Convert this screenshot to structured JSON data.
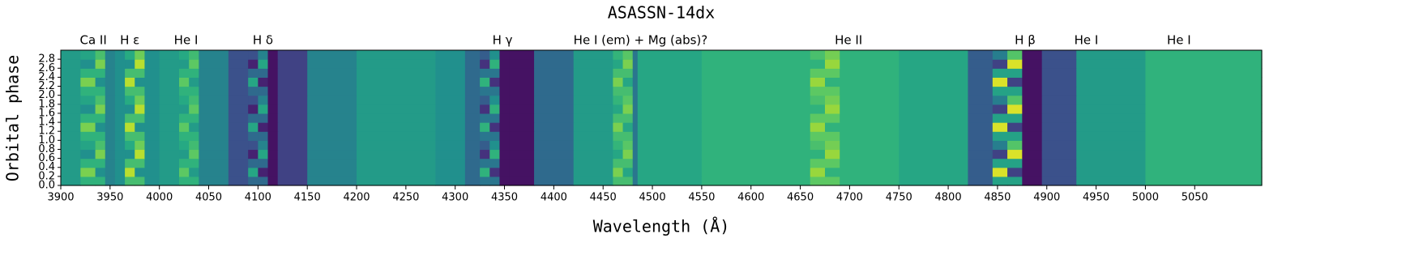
{
  "chart_data": {
    "type": "heatmap",
    "title": "ASASSN-14dx",
    "xlabel": "Wavelength (Å)",
    "ylabel": "Orbital phase",
    "colormap": "viridis",
    "x": [
      3900,
      3920,
      3935,
      3945,
      3955,
      3965,
      3975,
      3985,
      4000,
      4020,
      4030,
      4040,
      4070,
      4090,
      4100,
      4110,
      4120,
      4150,
      4200,
      4280,
      4310,
      4325,
      4335,
      4345,
      4355,
      4380,
      4420,
      4460,
      4470,
      4480,
      4485,
      4550,
      4660,
      4675,
      4690,
      4750,
      4820,
      4845,
      4860,
      4875,
      4895,
      4930,
      5000,
      5118
    ],
    "y": [
      0,
      0.2,
      0.4,
      0.6,
      0.8,
      1,
      1.2,
      1.4,
      1.6,
      1.8,
      2,
      2.2,
      2.4,
      2.6,
      2.8,
      3
    ],
    "xlim": [
      3900,
      5118
    ],
    "ylim": [
      0,
      3
    ],
    "xticks": [
      3900,
      3950,
      4000,
      4050,
      4100,
      4150,
      4200,
      4250,
      4300,
      4350,
      4400,
      4450,
      4500,
      4550,
      4600,
      4650,
      4700,
      4750,
      4800,
      4850,
      4900,
      4950,
      5000,
      5050
    ],
    "yticks": [
      {
        "value": 0,
        "label": "0.0"
      },
      0.2,
      0.4,
      0.6,
      0.8,
      {
        "value": 1,
        "label": "1.0"
      },
      1.2,
      1.4,
      1.6,
      1.8,
      {
        "value": 2,
        "label": "2.0"
      },
      2.2,
      2.4,
      2.6,
      2.8
    ],
    "line_labels": [
      {
        "label": "Ca II",
        "x": 3933
      },
      {
        "label": "H ε",
        "x": 3970
      },
      {
        "label": "He I",
        "x": 4027
      },
      {
        "label": "H δ",
        "x": 4105
      },
      {
        "label": "H γ",
        "x": 4348
      },
      {
        "label": "He I (em) + Mg (abs)?",
        "x": 4488
      },
      {
        "label": "He II",
        "x": 4699
      },
      {
        "label": "H β",
        "x": 4878
      },
      {
        "label": "He I",
        "x": 4940
      },
      {
        "label": "He I",
        "x": 5034
      }
    ],
    "values": [
      [
        0.55,
        0.65,
        0.65,
        0.45,
        0.5,
        0.7,
        0.7,
        0.5,
        0.55,
        0.65,
        0.65,
        0.45,
        0.25,
        0.35,
        0.35,
        0.05,
        0.2,
        0.45,
        0.55,
        0.5,
        0.35,
        0.4,
        0.4,
        0.05,
        0.05,
        0.35,
        0.55,
        0.7,
        0.7,
        0.4,
        0.6,
        0.65,
        0.75,
        0.75,
        0.65,
        0.6,
        0.3,
        0.58,
        0.58,
        0.05,
        0.25,
        0.55,
        0.65
      ],
      [
        0.55,
        0.8,
        0.5,
        0.45,
        0.5,
        0.9,
        0.5,
        0.5,
        0.55,
        0.75,
        0.55,
        0.45,
        0.25,
        0.6,
        0.1,
        0.05,
        0.2,
        0.45,
        0.55,
        0.5,
        0.35,
        0.65,
        0.15,
        0.05,
        0.05,
        0.35,
        0.55,
        0.8,
        0.6,
        0.4,
        0.6,
        0.65,
        0.85,
        0.65,
        0.65,
        0.6,
        0.3,
        0.95,
        0.2,
        0.05,
        0.25,
        0.55,
        0.65
      ],
      [
        0.55,
        0.65,
        0.65,
        0.45,
        0.5,
        0.7,
        0.7,
        0.5,
        0.55,
        0.65,
        0.65,
        0.45,
        0.25,
        0.35,
        0.35,
        0.05,
        0.2,
        0.45,
        0.55,
        0.5,
        0.35,
        0.4,
        0.4,
        0.05,
        0.05,
        0.35,
        0.55,
        0.7,
        0.7,
        0.4,
        0.6,
        0.65,
        0.75,
        0.75,
        0.65,
        0.6,
        0.3,
        0.58,
        0.58,
        0.05,
        0.25,
        0.55,
        0.65
      ],
      [
        0.55,
        0.5,
        0.8,
        0.45,
        0.5,
        0.5,
        0.9,
        0.5,
        0.55,
        0.55,
        0.75,
        0.45,
        0.25,
        0.1,
        0.6,
        0.05,
        0.2,
        0.45,
        0.55,
        0.5,
        0.35,
        0.15,
        0.65,
        0.05,
        0.05,
        0.35,
        0.55,
        0.6,
        0.8,
        0.4,
        0.6,
        0.65,
        0.65,
        0.85,
        0.65,
        0.6,
        0.3,
        0.2,
        0.95,
        0.05,
        0.25,
        0.55,
        0.65
      ],
      [
        0.55,
        0.59,
        0.71,
        0.45,
        0.5,
        0.62,
        0.78,
        0.5,
        0.55,
        0.61,
        0.69,
        0.45,
        0.25,
        0.25,
        0.45,
        0.05,
        0.2,
        0.45,
        0.55,
        0.5,
        0.35,
        0.3,
        0.5,
        0.05,
        0.05,
        0.35,
        0.55,
        0.66,
        0.74,
        0.4,
        0.6,
        0.65,
        0.71,
        0.79,
        0.65,
        0.6,
        0.3,
        0.43,
        0.73,
        0.05,
        0.25,
        0.55,
        0.65
      ],
      [
        0.55,
        0.65,
        0.65,
        0.45,
        0.5,
        0.7,
        0.7,
        0.5,
        0.55,
        0.65,
        0.65,
        0.45,
        0.25,
        0.35,
        0.35,
        0.05,
        0.2,
        0.45,
        0.55,
        0.5,
        0.35,
        0.4,
        0.4,
        0.05,
        0.05,
        0.35,
        0.55,
        0.7,
        0.7,
        0.4,
        0.6,
        0.65,
        0.75,
        0.75,
        0.65,
        0.6,
        0.3,
        0.58,
        0.58,
        0.05,
        0.25,
        0.55,
        0.65
      ],
      [
        0.55,
        0.8,
        0.5,
        0.45,
        0.5,
        0.9,
        0.5,
        0.5,
        0.55,
        0.75,
        0.55,
        0.45,
        0.25,
        0.6,
        0.1,
        0.05,
        0.2,
        0.45,
        0.55,
        0.5,
        0.35,
        0.65,
        0.15,
        0.05,
        0.05,
        0.35,
        0.55,
        0.8,
        0.6,
        0.4,
        0.6,
        0.65,
        0.85,
        0.65,
        0.65,
        0.6,
        0.3,
        0.95,
        0.2,
        0.05,
        0.25,
        0.55,
        0.65
      ],
      [
        0.55,
        0.65,
        0.65,
        0.45,
        0.5,
        0.7,
        0.7,
        0.5,
        0.55,
        0.65,
        0.65,
        0.45,
        0.25,
        0.35,
        0.35,
        0.05,
        0.2,
        0.45,
        0.55,
        0.5,
        0.35,
        0.4,
        0.4,
        0.05,
        0.05,
        0.35,
        0.55,
        0.7,
        0.7,
        0.4,
        0.6,
        0.65,
        0.75,
        0.75,
        0.65,
        0.6,
        0.3,
        0.58,
        0.58,
        0.05,
        0.25,
        0.55,
        0.65
      ],
      [
        0.55,
        0.5,
        0.8,
        0.45,
        0.5,
        0.5,
        0.9,
        0.5,
        0.55,
        0.55,
        0.75,
        0.45,
        0.25,
        0.1,
        0.6,
        0.05,
        0.2,
        0.45,
        0.55,
        0.5,
        0.35,
        0.15,
        0.65,
        0.05,
        0.05,
        0.35,
        0.55,
        0.6,
        0.8,
        0.4,
        0.6,
        0.65,
        0.65,
        0.85,
        0.65,
        0.6,
        0.3,
        0.2,
        0.95,
        0.05,
        0.25,
        0.55,
        0.65
      ],
      [
        0.55,
        0.59,
        0.71,
        0.45,
        0.5,
        0.62,
        0.78,
        0.5,
        0.55,
        0.61,
        0.69,
        0.45,
        0.25,
        0.25,
        0.45,
        0.05,
        0.2,
        0.45,
        0.55,
        0.5,
        0.35,
        0.3,
        0.5,
        0.05,
        0.05,
        0.35,
        0.55,
        0.66,
        0.74,
        0.4,
        0.6,
        0.65,
        0.71,
        0.79,
        0.65,
        0.6,
        0.3,
        0.43,
        0.73,
        0.05,
        0.25,
        0.55,
        0.65
      ],
      [
        0.55,
        0.65,
        0.65,
        0.45,
        0.5,
        0.7,
        0.7,
        0.5,
        0.55,
        0.65,
        0.65,
        0.45,
        0.25,
        0.35,
        0.35,
        0.05,
        0.2,
        0.45,
        0.55,
        0.5,
        0.35,
        0.4,
        0.4,
        0.05,
        0.05,
        0.35,
        0.55,
        0.7,
        0.7,
        0.4,
        0.6,
        0.65,
        0.75,
        0.75,
        0.65,
        0.6,
        0.3,
        0.58,
        0.58,
        0.05,
        0.25,
        0.55,
        0.65
      ],
      [
        0.55,
        0.8,
        0.5,
        0.45,
        0.5,
        0.9,
        0.5,
        0.5,
        0.55,
        0.75,
        0.55,
        0.45,
        0.25,
        0.6,
        0.1,
        0.05,
        0.2,
        0.45,
        0.55,
        0.5,
        0.35,
        0.65,
        0.15,
        0.05,
        0.05,
        0.35,
        0.55,
        0.8,
        0.6,
        0.4,
        0.6,
        0.65,
        0.85,
        0.65,
        0.65,
        0.6,
        0.3,
        0.95,
        0.2,
        0.05,
        0.25,
        0.55,
        0.65
      ],
      [
        0.55,
        0.65,
        0.65,
        0.45,
        0.5,
        0.7,
        0.7,
        0.5,
        0.55,
        0.65,
        0.65,
        0.45,
        0.25,
        0.35,
        0.35,
        0.05,
        0.2,
        0.45,
        0.55,
        0.5,
        0.35,
        0.4,
        0.4,
        0.05,
        0.05,
        0.35,
        0.55,
        0.7,
        0.7,
        0.4,
        0.6,
        0.65,
        0.75,
        0.75,
        0.65,
        0.6,
        0.3,
        0.58,
        0.58,
        0.05,
        0.25,
        0.55,
        0.65
      ],
      [
        0.55,
        0.5,
        0.8,
        0.45,
        0.5,
        0.5,
        0.9,
        0.5,
        0.55,
        0.55,
        0.75,
        0.45,
        0.25,
        0.1,
        0.6,
        0.05,
        0.2,
        0.45,
        0.55,
        0.5,
        0.35,
        0.15,
        0.65,
        0.05,
        0.05,
        0.35,
        0.55,
        0.6,
        0.8,
        0.4,
        0.6,
        0.65,
        0.65,
        0.85,
        0.65,
        0.6,
        0.3,
        0.2,
        0.95,
        0.05,
        0.25,
        0.55,
        0.65
      ],
      [
        0.55,
        0.59,
        0.71,
        0.45,
        0.5,
        0.62,
        0.78,
        0.5,
        0.55,
        0.61,
        0.69,
        0.45,
        0.25,
        0.25,
        0.45,
        0.05,
        0.2,
        0.45,
        0.55,
        0.5,
        0.35,
        0.3,
        0.5,
        0.05,
        0.05,
        0.35,
        0.55,
        0.66,
        0.74,
        0.4,
        0.6,
        0.65,
        0.71,
        0.79,
        0.65,
        0.6,
        0.3,
        0.43,
        0.73,
        0.05,
        0.25,
        0.55,
        0.65
      ]
    ]
  }
}
